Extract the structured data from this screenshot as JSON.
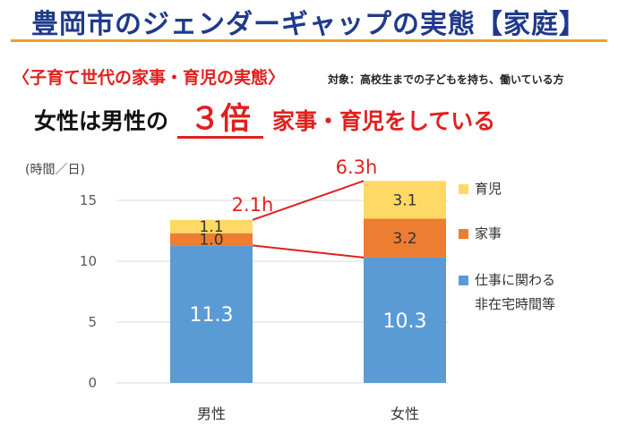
{
  "header": {
    "title": "豊岡市のジェンダーギャップの実態【家庭】",
    "subtitle": "〈子育て世代の家事・育児の実態〉",
    "target_note": "対象：高校生までの子どもを持ち、働いている方",
    "headline": {
      "before": "女性は男性の",
      "number": "３倍",
      "after": "家事・育児をしている"
    },
    "accent_color": "#e0201f",
    "title_color": "#1f3a8a",
    "rule_color": "#f0a020"
  },
  "chart_data": {
    "type": "bar",
    "stacked": true,
    "categories": [
      "男性",
      "女性"
    ],
    "ylabel": "(時間／日)",
    "ylim": [
      0,
      15
    ],
    "yticks": [
      "0",
      "5",
      "10",
      "15"
    ],
    "grid": true,
    "legend_position": "right",
    "series": [
      {
        "name": "仕事に関わる非在宅時間等",
        "name_lines": [
          "仕事に関わる",
          "非在宅時間等"
        ],
        "values": [
          11.3,
          10.3
        ],
        "labels": [
          "11.3",
          "10.3"
        ],
        "color": "#5b9bd5",
        "label_color": "#ffffff"
      },
      {
        "name": "家事",
        "name_lines": [
          "家事"
        ],
        "values": [
          1.0,
          3.2
        ],
        "labels": [
          "1.0",
          "3.2"
        ],
        "color": "#ed7d31",
        "label_color": "#333333"
      },
      {
        "name": "育児",
        "name_lines": [
          "育児"
        ],
        "values": [
          1.1,
          3.1
        ],
        "labels": [
          "1.1",
          "3.1"
        ],
        "color": "#ffd966",
        "label_color": "#333333"
      }
    ],
    "totals": [
      "2.1h",
      "6.3h"
    ]
  }
}
